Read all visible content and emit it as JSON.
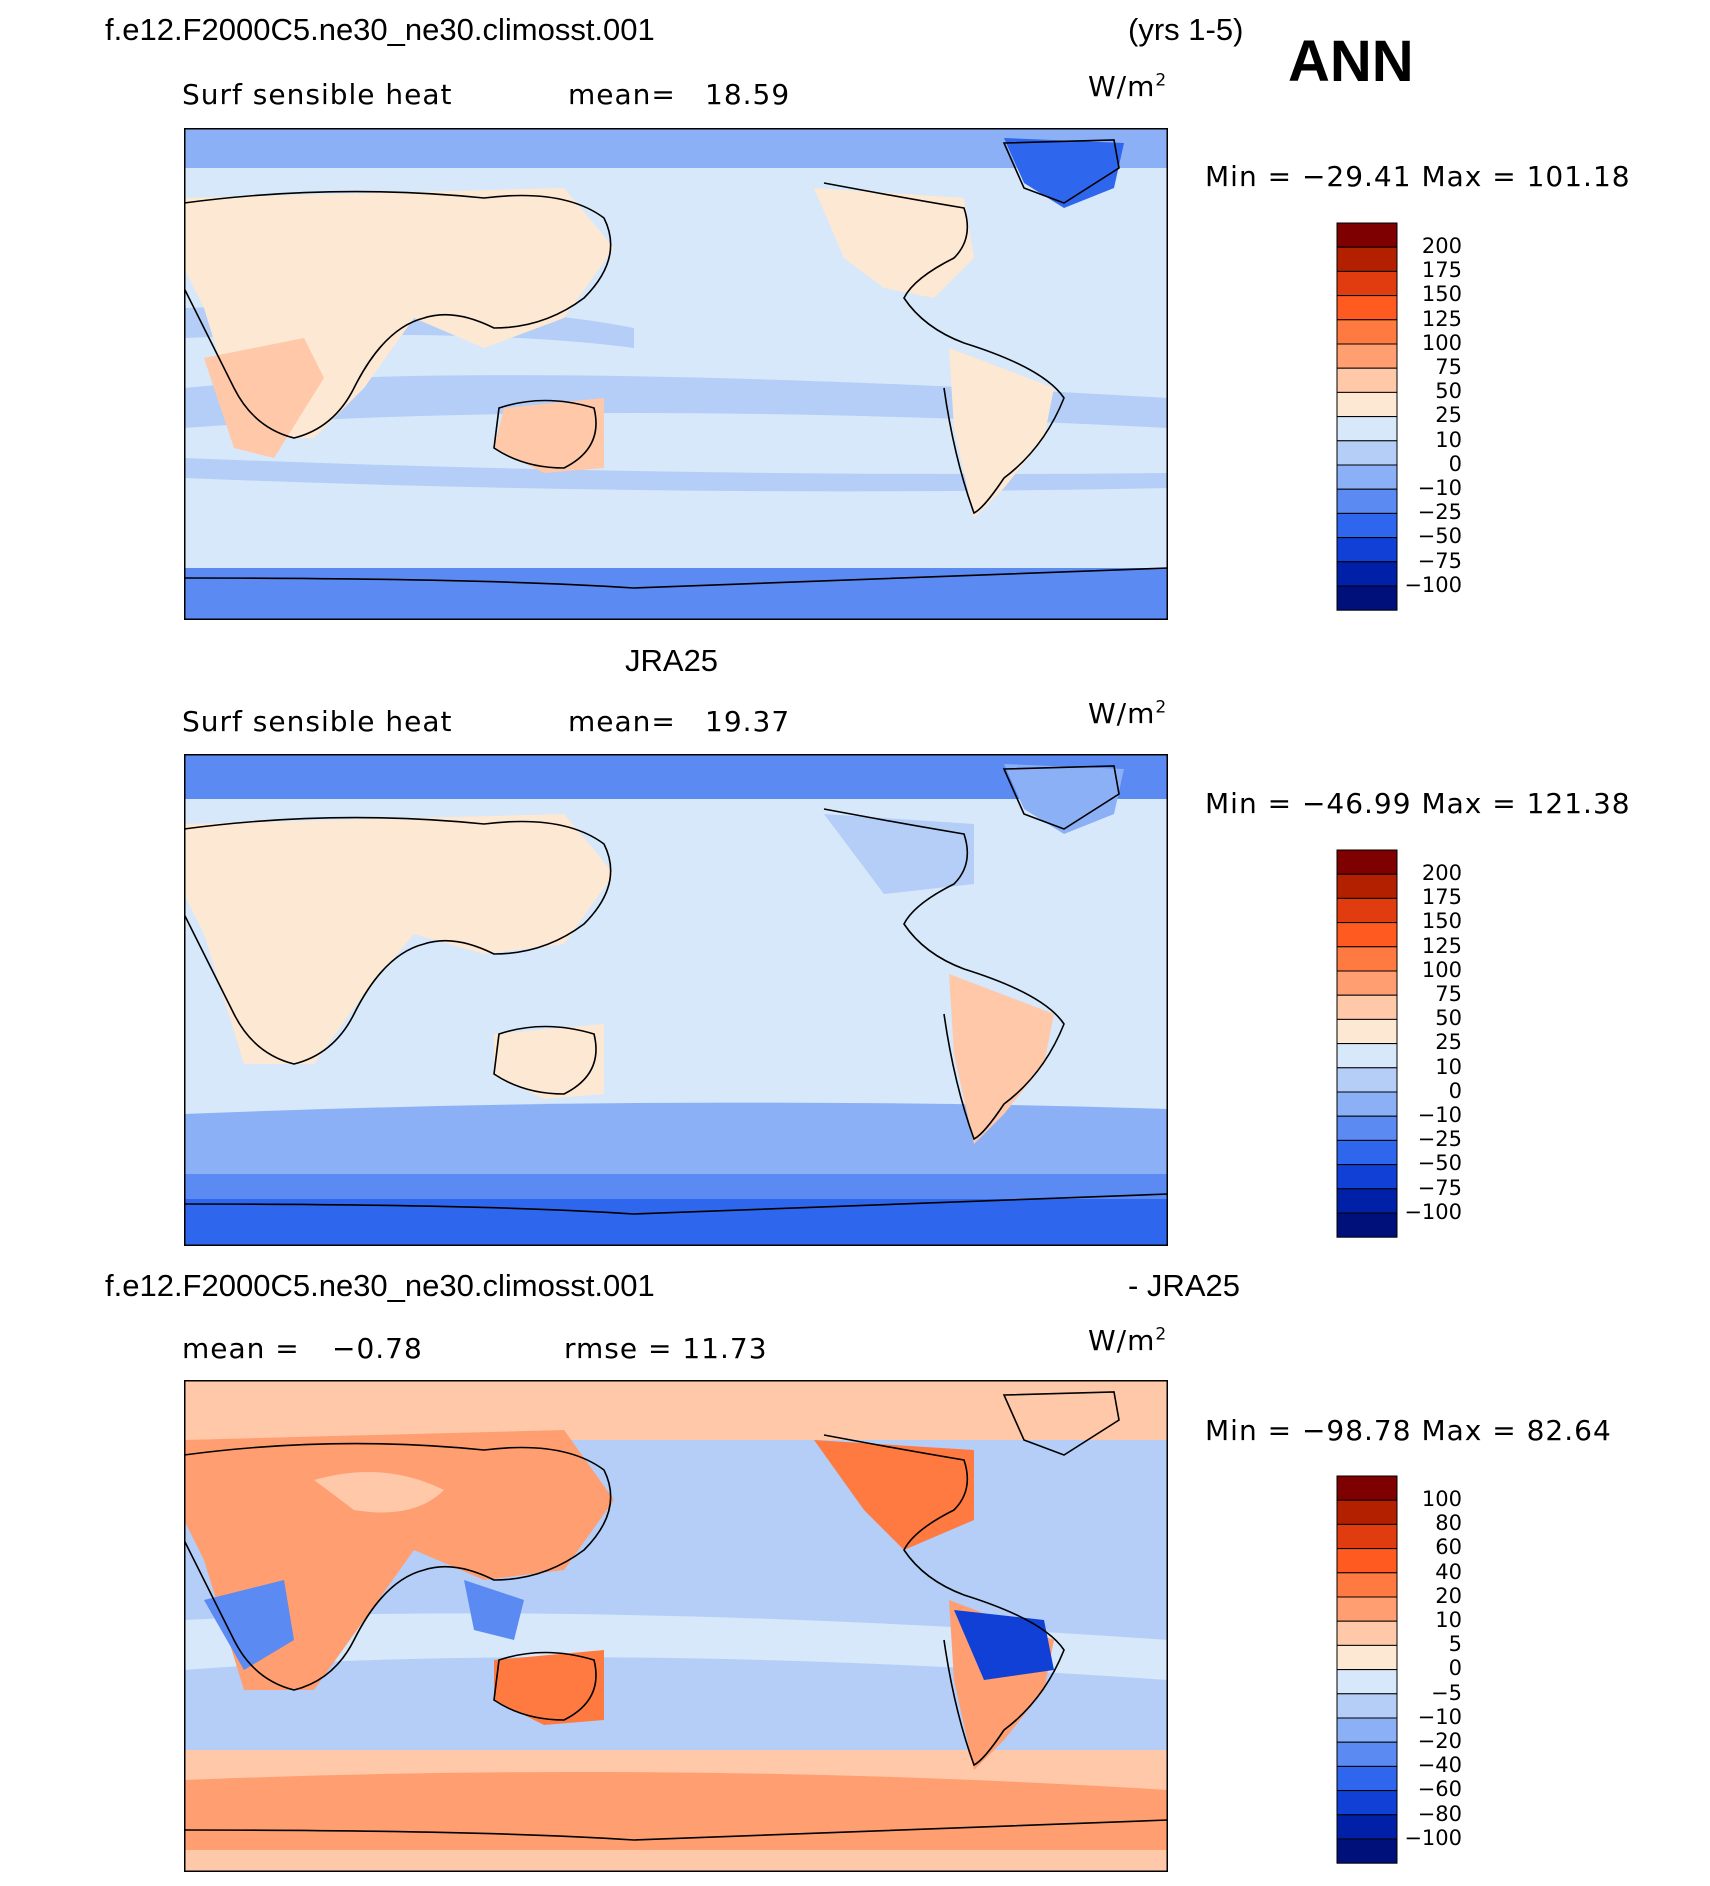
{
  "header": {
    "case_name": "f.e12.F2000C5.ne30_ne30.climosst.001",
    "years": "(yrs 1-5)",
    "season": "ANN"
  },
  "panels": [
    {
      "title": "",
      "variable": "Surf sensible heat",
      "stat_label": "mean=",
      "stat_value": "18.59",
      "second_stat": "",
      "units": "W/m",
      "units_exp": "2",
      "minmax": "Min = −29.41 Max = 101.18",
      "levels": [
        "200",
        "175",
        "150",
        "125",
        "100",
        "75",
        "50",
        "25",
        "10",
        "0",
        "−10",
        "−25",
        "−50",
        "−75",
        "−100"
      ],
      "colors": [
        "#7f0000",
        "#b22000",
        "#e03c10",
        "#ff5a20",
        "#ff7a40",
        "#ff9e70",
        "#ffc8a8",
        "#fde8d4",
        "#d6e8fa",
        "#b4cef7",
        "#8bb0f5",
        "#5a8af2",
        "#2f66ee",
        "#1040d6",
        "#0020a8",
        "#00107a"
      ]
    },
    {
      "title": "JRA25",
      "variable": "Surf sensible heat",
      "stat_label": "mean=",
      "stat_value": "19.37",
      "second_stat": "",
      "units": "W/m",
      "units_exp": "2",
      "minmax": "Min = −46.99 Max = 121.38",
      "levels": [
        "200",
        "175",
        "150",
        "125",
        "100",
        "75",
        "50",
        "25",
        "10",
        "0",
        "−10",
        "−25",
        "−50",
        "−75",
        "−100"
      ],
      "colors": [
        "#7f0000",
        "#b22000",
        "#e03c10",
        "#ff5a20",
        "#ff7a40",
        "#ff9e70",
        "#ffc8a8",
        "#fde8d4",
        "#d6e8fa",
        "#b4cef7",
        "#8bb0f5",
        "#5a8af2",
        "#2f66ee",
        "#1040d6",
        "#0020a8",
        "#00107a"
      ]
    },
    {
      "title_left": "f.e12.F2000C5.ne30_ne30.climosst.001",
      "title_right": "- JRA25",
      "variable": "mean =",
      "stat_label": "",
      "stat_value": "−0.78",
      "second_stat": "rmse =   11.73",
      "units": "W/m",
      "units_exp": "2",
      "minmax": "Min = −98.78 Max =  82.64",
      "levels": [
        "100",
        "80",
        "60",
        "40",
        "20",
        "10",
        "5",
        "0",
        "−5",
        "−10",
        "−20",
        "−40",
        "−60",
        "−80",
        "−100"
      ],
      "colors": [
        "#7f0000",
        "#b22000",
        "#e03c10",
        "#ff5a20",
        "#ff7a40",
        "#ff9e70",
        "#ffc8a8",
        "#fde8d4",
        "#d6e8fa",
        "#b4cef7",
        "#8bb0f5",
        "#5a8af2",
        "#2f66ee",
        "#1040d6",
        "#0020a8",
        "#00107a"
      ]
    }
  ]
}
